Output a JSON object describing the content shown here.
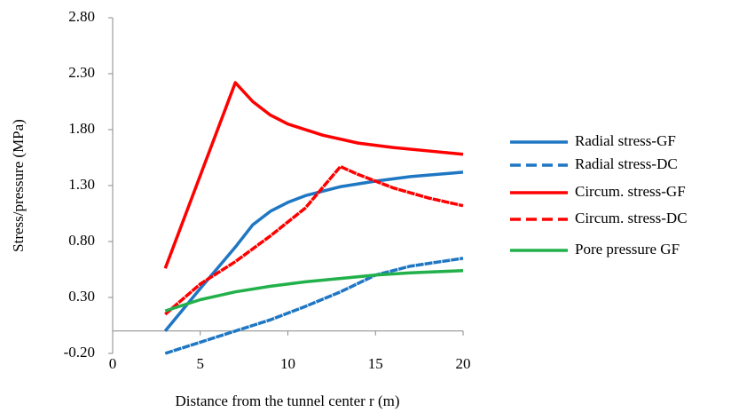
{
  "chart_data": {
    "type": "line",
    "x_label": "Distance from the tunnel center r (m)",
    "y_label": "Stress/pressure (MPa)",
    "xlim": [
      0,
      20
    ],
    "xticks": [
      0,
      5,
      10,
      15,
      20
    ],
    "ylim": [
      -0.2,
      2.8
    ],
    "yticks": [
      {
        "value": -0.2,
        "label": "-0.20"
      },
      {
        "value": 0.3,
        "label": "0.30"
      },
      {
        "value": 0.8,
        "label": "0.80"
      },
      {
        "value": 1.3,
        "label": "1.30"
      },
      {
        "value": 1.8,
        "label": "1.80"
      },
      {
        "value": 2.3,
        "label": "2.30"
      },
      {
        "value": 2.8,
        "label": "2.80"
      }
    ],
    "legend": "right",
    "series": [
      {
        "name": "Radial stress-GF",
        "color": "#1f77c4",
        "dashed": false,
        "x": [
          3,
          5,
          7,
          8,
          9,
          10,
          11,
          13,
          15,
          17,
          20
        ],
        "values": [
          0.0,
          0.38,
          0.75,
          0.95,
          1.07,
          1.15,
          1.21,
          1.29,
          1.34,
          1.38,
          1.42
        ]
      },
      {
        "name": "Radial stress-DC",
        "color": "#1f77c4",
        "dashed": true,
        "x": [
          3,
          5,
          7,
          9,
          11,
          13,
          15,
          17,
          20
        ],
        "values": [
          -0.2,
          -0.1,
          0.0,
          0.1,
          0.22,
          0.35,
          0.5,
          0.58,
          0.65
        ]
      },
      {
        "name": "Circum. stress-GF",
        "color": "#ff0000",
        "dashed": false,
        "x": [
          3,
          7,
          8,
          9,
          10,
          12,
          14,
          16,
          18,
          20
        ],
        "values": [
          0.56,
          2.22,
          2.05,
          1.93,
          1.85,
          1.75,
          1.68,
          1.64,
          1.61,
          1.58
        ]
      },
      {
        "name": "Circum. stress-DC",
        "color": "#ff0000",
        "dashed": true,
        "x": [
          3,
          5,
          7,
          9,
          11,
          13,
          14,
          16,
          18,
          20
        ],
        "values": [
          0.15,
          0.42,
          0.62,
          0.85,
          1.1,
          1.47,
          1.4,
          1.28,
          1.19,
          1.12
        ]
      },
      {
        "name": "Pore pressure GF",
        "color": "#22b04a",
        "dashed": false,
        "x": [
          3,
          5,
          7,
          9,
          11,
          13,
          15,
          17,
          20
        ],
        "values": [
          0.18,
          0.28,
          0.35,
          0.4,
          0.44,
          0.47,
          0.5,
          0.52,
          0.54
        ]
      }
    ]
  }
}
